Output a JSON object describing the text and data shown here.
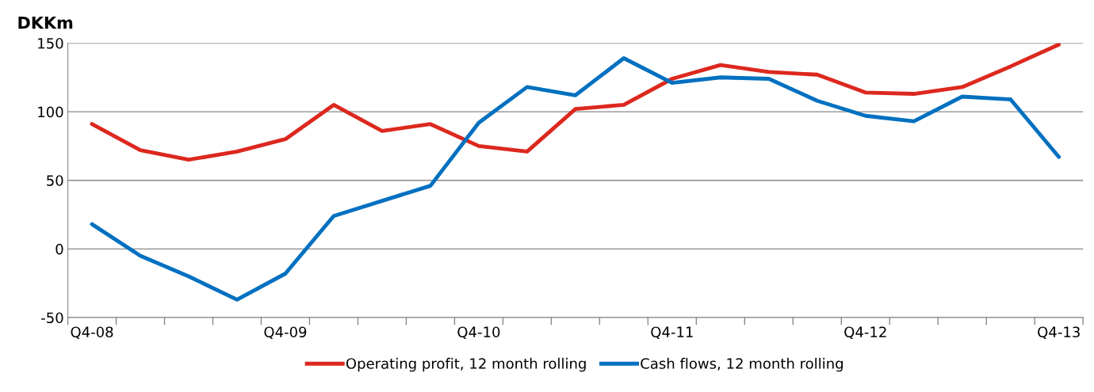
{
  "chart_data": {
    "type": "line",
    "ylabel": "DKKm",
    "categories": [
      "Q4-08",
      null,
      null,
      null,
      "Q4-09",
      null,
      null,
      null,
      "Q4-10",
      null,
      null,
      null,
      "Q4-11",
      null,
      null,
      null,
      "Q4-12",
      null,
      null,
      null,
      "Q4-13"
    ],
    "series": [
      {
        "name": "Operating profit, 12 month rolling",
        "color": "#dc281e",
        "values": [
          91,
          72,
          65,
          71,
          80,
          105,
          86,
          91,
          75,
          71,
          102,
          105,
          124,
          134,
          129,
          127,
          114,
          113,
          118,
          133,
          149
        ]
      },
      {
        "name": "Cash flows, 12 month rolling",
        "color": "#0070c0",
        "values": [
          18,
          -5,
          -20,
          -37,
          -18,
          24,
          35,
          46,
          92,
          118,
          112,
          139,
          121,
          125,
          124,
          108,
          97,
          93,
          111,
          109,
          67
        ]
      }
    ],
    "ylim": [
      -50,
      150
    ],
    "yticks": [
      -50,
      0,
      50,
      100,
      150
    ],
    "grid": "y",
    "legend": "bottom",
    "marker": "none",
    "line_style": "solid"
  }
}
